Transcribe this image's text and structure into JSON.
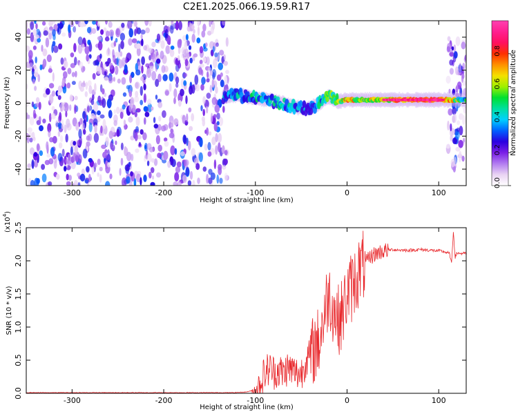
{
  "page": {
    "title": "C2E1.2025.066.19.59.R17"
  },
  "chart_data": [
    {
      "type": "heatmap",
      "xlabel": "Height of straight line (km)",
      "ylabel": "Frequency (Hz)",
      "xlim": [
        -350,
        130
      ],
      "ylim": [
        -50,
        50
      ],
      "x_ticks": [
        -300,
        -200,
        -100,
        0,
        100
      ],
      "y_ticks": [
        -40,
        -20,
        0,
        20,
        40
      ],
      "colorbar": {
        "label": "Normalized spectral amplitude",
        "range": [
          0,
          1
        ],
        "ticks": [
          "0.0",
          "0.2",
          "0.4",
          "0.6",
          "0.8"
        ],
        "tick_values": [
          0.0,
          0.2,
          0.4,
          0.6,
          0.8
        ],
        "colormap": [
          "#ffffff",
          "#e9d3f3",
          "#b27cf0",
          "#7a1fe6",
          "#2a00e0",
          "#0060ff",
          "#00d0ff",
          "#00e0a0",
          "#00e030",
          "#a0f000",
          "#f5e000",
          "#ff9000",
          "#ff3000",
          "#ff1060",
          "#ff2090",
          "#ff40b0"
        ]
      },
      "regions": [
        {
          "name": "noise",
          "x_range": [
            -350,
            -130
          ],
          "freq_range": [
            -50,
            50
          ]
        },
        {
          "name": "noise",
          "x_range": [
            110,
            130
          ],
          "freq_range": [
            -40,
            40
          ]
        }
      ],
      "signal_track": {
        "x": [
          -135,
          -120,
          -100,
          -85,
          -70,
          -60,
          -50,
          -40,
          -30,
          -20,
          -10,
          0,
          20,
          40,
          60,
          80,
          100,
          130
        ],
        "frequency": [
          4,
          5,
          3,
          2,
          0,
          -2,
          -3,
          -3,
          0,
          4,
          1,
          2,
          2,
          2,
          2,
          2,
          2,
          2
        ],
        "amplitude": [
          0.4,
          0.45,
          0.5,
          0.5,
          0.45,
          0.45,
          0.4,
          0.4,
          0.5,
          0.55,
          0.7,
          0.75,
          0.7,
          0.7,
          0.85,
          0.95,
          0.95,
          0.5
        ]
      }
    },
    {
      "type": "line",
      "xlabel": "Height of straight line (km)",
      "ylabel": "SNR (10 * v/v)",
      "y_multiplier": "(x10",
      "y_multiplier_exp": "4",
      "xlim": [
        -350,
        130
      ],
      "ylim": [
        0,
        2.5
      ],
      "x_ticks": [
        -300,
        -200,
        -100,
        0,
        100
      ],
      "y_ticks": [
        "0.0",
        "0.5",
        "1.0",
        "1.5",
        "2.0",
        "2.5"
      ],
      "y_tick_values": [
        0.0,
        0.5,
        1.0,
        1.5,
        2.0,
        2.5
      ],
      "series": [
        {
          "color": "#e8262a",
          "x": [
            -350,
            -300,
            -250,
            -200,
            -150,
            -125,
            -110,
            -100,
            -95,
            -90,
            -85,
            -80,
            -75,
            -70,
            -65,
            -60,
            -55,
            -50,
            -45,
            -40,
            -35,
            -30,
            -25,
            -20,
            -15,
            -10,
            -5,
            0,
            5,
            10,
            15,
            20,
            25,
            30,
            35,
            40,
            45,
            50,
            60,
            70,
            80,
            90,
            100,
            105,
            110,
            112,
            114,
            116,
            118,
            120,
            125,
            130
          ],
          "y": [
            0.01,
            0.01,
            0.01,
            0.01,
            0.01,
            0.01,
            0.02,
            0.05,
            0.15,
            0.3,
            0.38,
            0.32,
            0.35,
            0.3,
            0.38,
            0.35,
            0.3,
            0.3,
            0.5,
            0.55,
            0.7,
            0.8,
            1.2,
            1.5,
            1.3,
            1.1,
            1.2,
            1.5,
            1.6,
            1.75,
            1.9,
            1.95,
            2.05,
            2.1,
            2.13,
            2.15,
            2.16,
            2.17,
            2.16,
            2.16,
            2.17,
            2.16,
            2.15,
            2.14,
            2.12,
            2.1,
            1.95,
            2.45,
            2.05,
            2.12,
            2.11,
            2.11
          ]
        }
      ]
    }
  ]
}
